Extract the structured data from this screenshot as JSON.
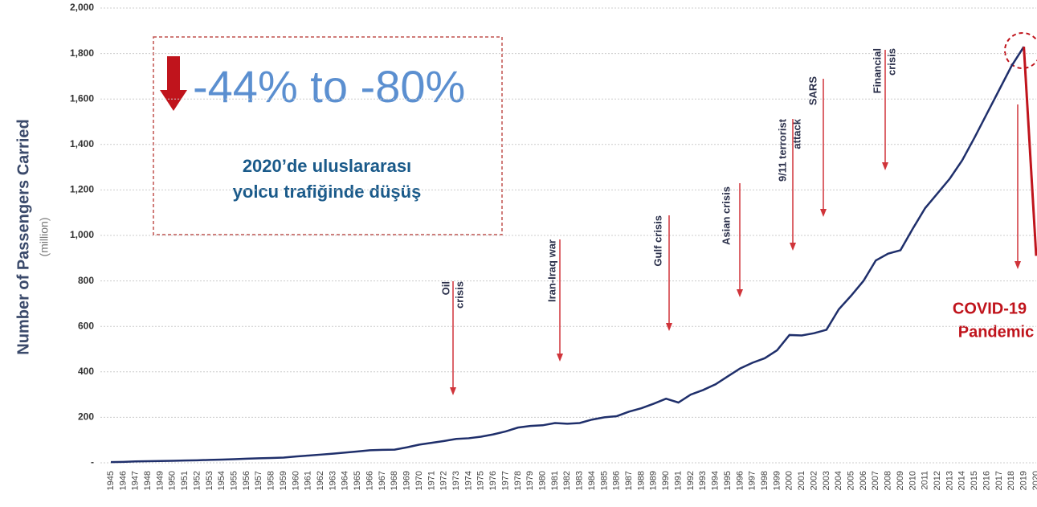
{
  "chart_data": {
    "type": "line",
    "y_axis_label": "Number of Passengers Carried",
    "y_axis_unit": "(million)",
    "categories": [
      "1945",
      "1946",
      "1947",
      "1948",
      "1949",
      "1950",
      "1951",
      "1952",
      "1953",
      "1954",
      "1955",
      "1956",
      "1957",
      "1958",
      "1959",
      "1960",
      "1961",
      "1962",
      "1963",
      "1964",
      "1965",
      "1966",
      "1967",
      "1968",
      "1969",
      "1970",
      "1971",
      "1972",
      "1973",
      "1974",
      "1975",
      "1976",
      "1977",
      "1978",
      "1979",
      "1980",
      "1981",
      "1982",
      "1983",
      "1984",
      "1985",
      "1986",
      "1987",
      "1988",
      "1989",
      "1990",
      "1991",
      "1992",
      "1993",
      "1994",
      "1995",
      "1996",
      "1997",
      "1998",
      "1999",
      "2000",
      "2001",
      "2002",
      "2003",
      "2004",
      "2005",
      "2006",
      "2007",
      "2008",
      "2009",
      "2010",
      "2011",
      "2012",
      "2013",
      "2014",
      "2015",
      "2016",
      "2017",
      "2018",
      "2019",
      "2020"
    ],
    "values": [
      3,
      4,
      6,
      7,
      8,
      9,
      10,
      11,
      13,
      14,
      16,
      18,
      20,
      21,
      23,
      28,
      32,
      36,
      40,
      45,
      50,
      55,
      57,
      58,
      68,
      80,
      88,
      96,
      105,
      108,
      115,
      125,
      138,
      155,
      162,
      165,
      175,
      172,
      175,
      190,
      200,
      205,
      225,
      240,
      260,
      282,
      265,
      300,
      320,
      345,
      380,
      415,
      440,
      460,
      495,
      562,
      560,
      570,
      585,
      675,
      735,
      800,
      890,
      920,
      935,
      1030,
      1120,
      1185,
      1250,
      1330,
      1430,
      1535,
      1640,
      1745,
      1830,
      910
    ],
    "color": "#1f2f6b",
    "highlight_color": "#c0141c",
    "ylim": [
      0,
      2000
    ],
    "yticks": [
      {
        "value": 0,
        "label": "-"
      },
      200,
      400,
      600,
      800,
      {
        "value": 1000,
        "label": "1,000"
      },
      {
        "value": 1200,
        "label": "1,200"
      },
      {
        "value": 1400,
        "label": "1,400"
      },
      {
        "value": 1600,
        "label": "1,600"
      },
      {
        "value": 1800,
        "label": "1,800"
      },
      {
        "value": 2000,
        "label": "2,000"
      }
    ],
    "grid": true,
    "annotations": [
      [
        "Oil",
        "crisis"
      ],
      [
        "Iran-Iraq war"
      ],
      [
        "Gulf crisis"
      ],
      [
        "Asian crisis"
      ],
      [
        "9/11 terrorist",
        "attack"
      ],
      [
        "SARS"
      ],
      [
        "Financial",
        "crisis"
      ]
    ],
    "covid_label": [
      "COVID-19",
      "Pandemic"
    ],
    "callout": {
      "headline": "-44% to -80%",
      "text": [
        "2020’de uluslararası",
        "yolcu trafiğinde düşüş"
      ]
    }
  }
}
